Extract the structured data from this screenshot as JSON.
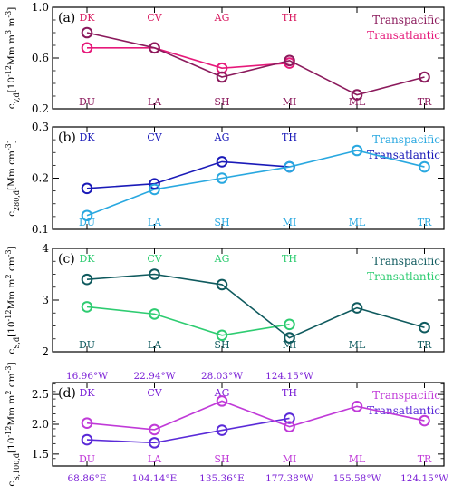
{
  "chart_data": [
    {
      "type": "line",
      "panel": "(a)",
      "ylabel": "c_V,d[10^-12Mm m^3 m^-3]",
      "ylim": [
        0.2,
        1.0
      ],
      "yticks": [
        0.2,
        0.6,
        1.0
      ],
      "ytick_labels": [
        "0.2",
        "0.6",
        "1.0"
      ],
      "x": [
        1,
        2,
        3,
        4,
        5,
        6
      ],
      "top_labels": [
        "DK",
        "CV",
        "AG",
        "TH"
      ],
      "bottom_labels": [
        "DU",
        "LA",
        "SH",
        "MI",
        "ML",
        "TR"
      ],
      "top_label_color": "#d81b60",
      "bottom_label_color": "#8b1a5c",
      "series": [
        {
          "name": "Transpacific",
          "color": "#8b1a5c",
          "x": [
            1,
            2,
            3,
            4,
            5,
            6
          ],
          "values": [
            0.8,
            0.68,
            0.45,
            0.58,
            0.31,
            0.45
          ]
        },
        {
          "name": "Transatlantic",
          "color": "#e6197a",
          "x": [
            1,
            2,
            3,
            4
          ],
          "values": [
            0.68,
            0.68,
            0.52,
            0.56
          ]
        }
      ]
    },
    {
      "type": "line",
      "panel": "(b)",
      "ylabel": "c_280,d[Mm cm^-3]",
      "ylim": [
        0.1,
        0.3
      ],
      "yticks": [
        0.1,
        0.2,
        0.3
      ],
      "ytick_labels": [
        "0.1",
        "0.2",
        "0.3"
      ],
      "x": [
        1,
        2,
        3,
        4,
        5,
        6
      ],
      "top_labels": [
        "DK",
        "CV",
        "AG",
        "TH"
      ],
      "bottom_labels": [
        "DU",
        "LA",
        "SH",
        "MI",
        "ML",
        "TR"
      ],
      "top_label_color": "#1a1ab8",
      "bottom_label_color": "#29a8e0",
      "series": [
        {
          "name": "Transpacific",
          "color": "#29a8e0",
          "x": [
            1,
            2,
            3,
            4,
            5,
            6
          ],
          "values": [
            0.127,
            0.178,
            0.2,
            0.222,
            0.254,
            0.222
          ]
        },
        {
          "name": "Transatlantic",
          "color": "#1a1ab8",
          "x": [
            1,
            2,
            3,
            4
          ],
          "values": [
            0.18,
            0.189,
            0.232,
            0.222
          ]
        }
      ]
    },
    {
      "type": "line",
      "panel": "(c)",
      "ylabel": "c_S,d[10^-12Mm m^2 cm^-3]",
      "ylim": [
        2,
        4
      ],
      "yticks": [
        2,
        3,
        4
      ],
      "ytick_labels": [
        "2",
        "3",
        "4"
      ],
      "x": [
        1,
        2,
        3,
        4,
        5,
        6
      ],
      "top_labels": [
        "DK",
        "CV",
        "AG",
        "TH"
      ],
      "bottom_labels": [
        "DU",
        "LA",
        "SH",
        "MI",
        "ML",
        "TR"
      ],
      "top_label_color": "#2ecc71",
      "bottom_label_color": "#0f5a5e",
      "series": [
        {
          "name": "Transpacific",
          "color": "#0f5a5e",
          "x": [
            1,
            2,
            3,
            4,
            5,
            6
          ],
          "values": [
            3.4,
            3.5,
            3.3,
            2.27,
            2.85,
            2.47
          ]
        },
        {
          "name": "Transatlantic",
          "color": "#2ecc71",
          "x": [
            1,
            2,
            3,
            4
          ],
          "values": [
            2.87,
            2.73,
            2.32,
            2.53
          ]
        }
      ]
    },
    {
      "type": "line",
      "panel": "(d)",
      "ylabel": "c_S,100,d[10^-12Mm m^2 cm^-3]",
      "ylim": [
        1.3,
        2.7
      ],
      "yticks": [
        1.5,
        2.0,
        2.5
      ],
      "ytick_labels": [
        "1.5",
        "2.0",
        "2.5"
      ],
      "x": [
        1,
        2,
        3,
        4,
        5,
        6
      ],
      "top_labels": [
        "DK",
        "CV",
        "AG",
        "TH"
      ],
      "bottom_labels": [
        "DU",
        "LA",
        "SH",
        "MI",
        "ML",
        "TR"
      ],
      "top_label_color": "#7a1fd6",
      "bottom_label_color": "#c03ad8",
      "top_longitudes": [
        "16.96°W",
        "22.94°W",
        "28.03°W",
        "124.15°W"
      ],
      "bottom_longitudes": [
        "68.86°E",
        "104.14°E",
        "135.36°E",
        "177.38°W",
        "155.58°W",
        "124.15°W"
      ],
      "series": [
        {
          "name": "Transpacific",
          "color": "#c03ad8",
          "x": [
            1,
            2,
            3,
            4,
            5,
            6
          ],
          "values": [
            2.02,
            1.91,
            2.39,
            1.96,
            2.3,
            2.06
          ]
        },
        {
          "name": "Transatlantic",
          "color": "#5a2ad8",
          "x": [
            1,
            2,
            3,
            4
          ],
          "values": [
            1.74,
            1.69,
            1.9,
            2.1
          ]
        }
      ]
    }
  ]
}
